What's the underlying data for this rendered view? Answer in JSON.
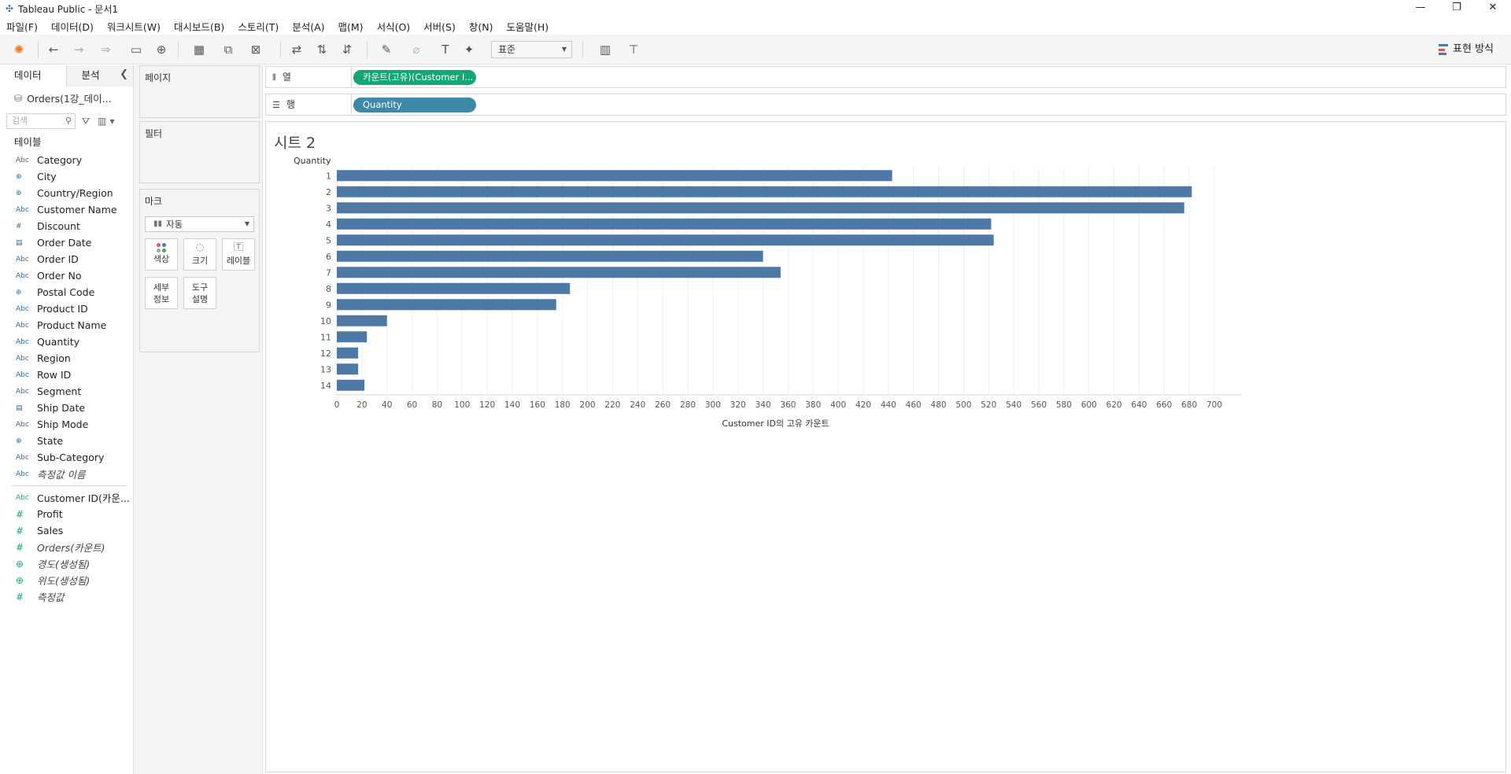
{
  "window": {
    "title": "Tableau Public - 문서1"
  },
  "menu": [
    "파일(F)",
    "데이터(D)",
    "워크시트(W)",
    "대시보드(B)",
    "스토리(T)",
    "분석(A)",
    "맵(M)",
    "서식(O)",
    "서버(S)",
    "창(N)",
    "도움말(H)"
  ],
  "toolbar": {
    "fit_select": "표준",
    "show_me_label": "표현 방식"
  },
  "data_pane": {
    "tab_data": "데이터",
    "tab_analysis": "분석",
    "datasource": "Orders(1강_데이...",
    "search_placeholder": "검색",
    "tables_header": "테이블",
    "dimensions": [
      {
        "icon": "Abc",
        "name": "Category"
      },
      {
        "icon": "globe",
        "name": "City"
      },
      {
        "icon": "globe",
        "name": "Country/Region"
      },
      {
        "icon": "Abc",
        "name": "Customer Name"
      },
      {
        "icon": "#",
        "name": "Discount"
      },
      {
        "icon": "calendar",
        "name": "Order Date"
      },
      {
        "icon": "Abc",
        "name": "Order ID"
      },
      {
        "icon": "Abc",
        "name": "Order No"
      },
      {
        "icon": "globe",
        "name": "Postal Code"
      },
      {
        "icon": "Abc",
        "name": "Product ID"
      },
      {
        "icon": "Abc",
        "name": "Product Name"
      },
      {
        "icon": "Abc",
        "name": "Quantity"
      },
      {
        "icon": "Abc",
        "name": "Region"
      },
      {
        "icon": "Abc",
        "name": "Row ID"
      },
      {
        "icon": "Abc",
        "name": "Segment"
      },
      {
        "icon": "calendar",
        "name": "Ship Date"
      },
      {
        "icon": "Abc",
        "name": "Ship Mode"
      },
      {
        "icon": "globe",
        "name": "State"
      },
      {
        "icon": "Abc",
        "name": "Sub-Category"
      },
      {
        "icon": "Abc",
        "name": "측정값 이름",
        "italic": true
      }
    ],
    "measures": [
      {
        "icon": "Abc",
        "name": "Customer ID(카운..."
      },
      {
        "icon": "#",
        "name": "Profit"
      },
      {
        "icon": "#",
        "name": "Sales"
      },
      {
        "icon": "#",
        "name": "Orders(카운트)",
        "italic": true
      },
      {
        "icon": "globe",
        "name": "경도(생성됨)",
        "italic": true
      },
      {
        "icon": "globe",
        "name": "위도(생성됨)",
        "italic": true
      },
      {
        "icon": "#",
        "name": "측정값",
        "italic": true
      }
    ]
  },
  "cards": {
    "pages": "페이지",
    "filters": "필터",
    "marks": "마크",
    "marks_type": "자동",
    "color": "색상",
    "size": "크기",
    "label": "레이블",
    "detail_1": "세부",
    "detail_2": "정보",
    "tooltip_1": "도구",
    "tooltip_2": "설명"
  },
  "shelves": {
    "columns_label": "열",
    "rows_label": "행",
    "columns_pill": "카운트(고유)(Customer I...",
    "rows_pill": "Quantity"
  },
  "colors": {
    "bar": "#4e79a7",
    "green_pill": "#12a876",
    "blue_pill": "#3d88a8"
  },
  "sheet": {
    "title": "시트 2"
  },
  "chart_data": {
    "type": "bar",
    "orientation": "horizontal",
    "row_header": "Quantity",
    "categories": [
      "1",
      "2",
      "3",
      "4",
      "5",
      "6",
      "7",
      "8",
      "9",
      "10",
      "11",
      "12",
      "13",
      "14"
    ],
    "values": [
      443,
      682,
      676,
      522,
      524,
      340,
      354,
      186,
      175,
      40,
      24,
      17,
      17,
      22
    ],
    "xlabel": "Customer ID의 고유 카운트",
    "xlim": [
      0,
      700
    ],
    "x_ticks": [
      0,
      20,
      40,
      60,
      80,
      100,
      120,
      140,
      160,
      180,
      200,
      220,
      240,
      260,
      280,
      300,
      320,
      340,
      360,
      380,
      400,
      420,
      440,
      460,
      480,
      500,
      520,
      540,
      560,
      580,
      600,
      620,
      640,
      660,
      680,
      700
    ],
    "grid": "vertical"
  }
}
